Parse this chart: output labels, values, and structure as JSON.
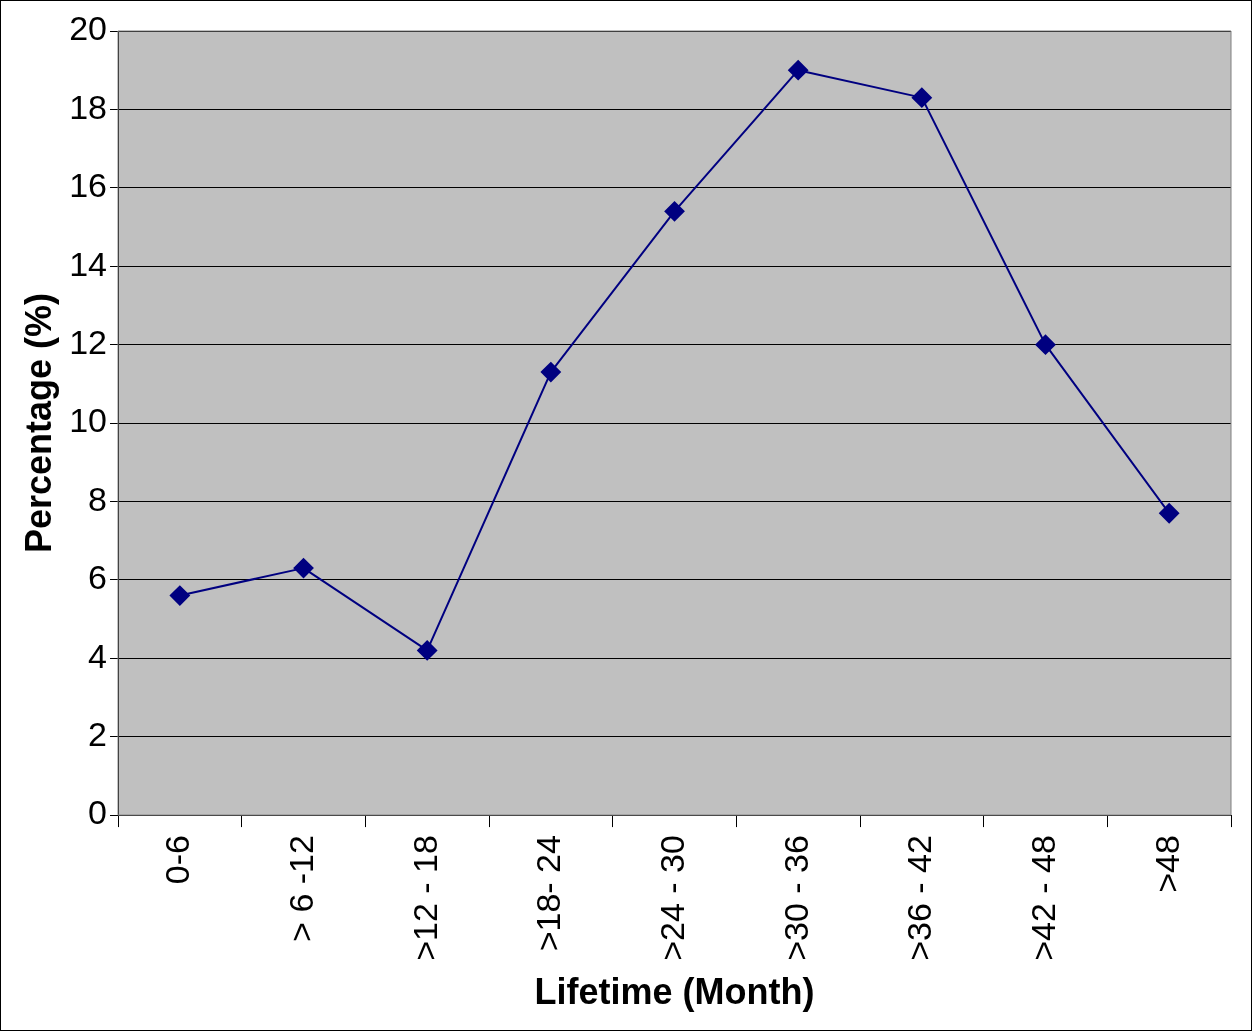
{
  "chart_data": {
    "type": "line",
    "xlabel": "Lifetime (Month)",
    "ylabel": "Percentage (%)",
    "categories": [
      "0-6",
      "> 6 -12",
      ">12 - 18",
      ">18- 24",
      ">24 - 30",
      ">30 - 36",
      ">36 - 42",
      ">42 - 48",
      ">48"
    ],
    "series": [
      {
        "color": "#000080",
        "values": [
          5.6,
          6.3,
          4.2,
          11.3,
          15.4,
          19.0,
          18.3,
          12.0,
          7.7
        ]
      }
    ],
    "ylim": [
      0,
      20
    ],
    "yticks": [
      0,
      2,
      4,
      6,
      8,
      10,
      12,
      14,
      16,
      18,
      20
    ],
    "grid": "y",
    "legend": false,
    "marker": "diamond",
    "line_style": "solid"
  }
}
